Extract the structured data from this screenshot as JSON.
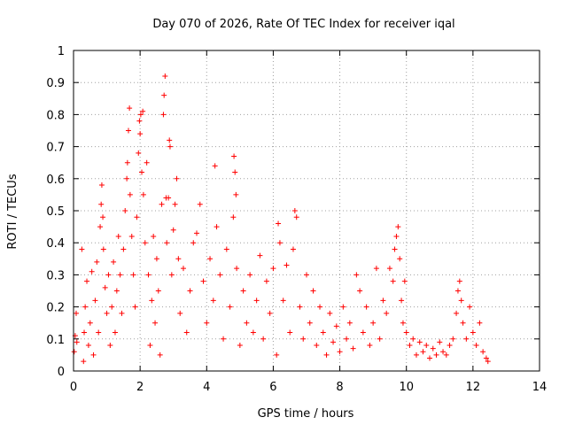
{
  "chart_data": {
    "type": "scatter",
    "title": "Day 070 of 2026, Rate Of TEC Index for receiver iqal",
    "xlabel": "GPS time / hours",
    "ylabel": "ROTI / TECUs",
    "xlim": [
      0,
      14
    ],
    "ylim": [
      0,
      1
    ],
    "xticks": [
      0,
      2,
      4,
      6,
      8,
      10,
      12,
      14
    ],
    "xtick_labels": [
      "0",
      "2",
      "4",
      "6",
      "8",
      "10",
      "12",
      "14"
    ],
    "yticks": [
      0,
      0.1,
      0.2,
      0.3,
      0.4,
      0.5,
      0.6,
      0.7,
      0.8,
      0.9,
      1
    ],
    "ytick_labels": [
      "0",
      "0.1",
      "0.2",
      "0.3",
      "0.4",
      "0.5",
      "0.6",
      "0.7",
      "0.8",
      "0.9",
      "1"
    ],
    "grid": true,
    "marker": "plus",
    "color": "#ff0000",
    "series": [
      {
        "name": "ROTI",
        "points": [
          [
            0.02,
            0.06
          ],
          [
            0.05,
            0.11
          ],
          [
            0.08,
            0.18
          ],
          [
            0.1,
            0.09
          ],
          [
            0.25,
            0.38
          ],
          [
            0.3,
            0.03
          ],
          [
            0.32,
            0.12
          ],
          [
            0.35,
            0.2
          ],
          [
            0.4,
            0.28
          ],
          [
            0.45,
            0.08
          ],
          [
            0.5,
            0.15
          ],
          [
            0.55,
            0.31
          ],
          [
            0.6,
            0.05
          ],
          [
            0.65,
            0.22
          ],
          [
            0.7,
            0.34
          ],
          [
            0.75,
            0.12
          ],
          [
            0.8,
            0.45
          ],
          [
            0.83,
            0.52
          ],
          [
            0.85,
            0.58
          ],
          [
            0.88,
            0.48
          ],
          [
            0.9,
            0.38
          ],
          [
            0.95,
            0.26
          ],
          [
            1.0,
            0.18
          ],
          [
            1.05,
            0.3
          ],
          [
            1.1,
            0.08
          ],
          [
            1.15,
            0.2
          ],
          [
            1.2,
            0.34
          ],
          [
            1.25,
            0.12
          ],
          [
            1.3,
            0.25
          ],
          [
            1.35,
            0.42
          ],
          [
            1.4,
            0.3
          ],
          [
            1.45,
            0.18
          ],
          [
            1.5,
            0.38
          ],
          [
            1.55,
            0.5
          ],
          [
            1.6,
            0.6
          ],
          [
            1.62,
            0.65
          ],
          [
            1.65,
            0.75
          ],
          [
            1.68,
            0.82
          ],
          [
            1.7,
            0.55
          ],
          [
            1.75,
            0.42
          ],
          [
            1.8,
            0.3
          ],
          [
            1.85,
            0.2
          ],
          [
            1.9,
            0.48
          ],
          [
            1.95,
            0.68
          ],
          [
            1.98,
            0.78
          ],
          [
            2.0,
            0.74
          ],
          [
            2.02,
            0.8
          ],
          [
            2.05,
            0.62
          ],
          [
            2.08,
            0.81
          ],
          [
            2.1,
            0.55
          ],
          [
            2.15,
            0.4
          ],
          [
            2.2,
            0.65
          ],
          [
            2.25,
            0.3
          ],
          [
            2.3,
            0.08
          ],
          [
            2.35,
            0.22
          ],
          [
            2.4,
            0.42
          ],
          [
            2.45,
            0.15
          ],
          [
            2.5,
            0.35
          ],
          [
            2.55,
            0.25
          ],
          [
            2.6,
            0.05
          ],
          [
            2.65,
            0.52
          ],
          [
            2.7,
            0.8
          ],
          [
            2.72,
            0.86
          ],
          [
            2.75,
            0.92
          ],
          [
            2.78,
            0.54
          ],
          [
            2.8,
            0.4
          ],
          [
            2.85,
            0.54
          ],
          [
            2.88,
            0.72
          ],
          [
            2.9,
            0.7
          ],
          [
            2.95,
            0.3
          ],
          [
            3.0,
            0.44
          ],
          [
            3.05,
            0.52
          ],
          [
            3.1,
            0.6
          ],
          [
            3.15,
            0.35
          ],
          [
            3.2,
            0.18
          ],
          [
            3.3,
            0.32
          ],
          [
            3.4,
            0.12
          ],
          [
            3.5,
            0.25
          ],
          [
            3.6,
            0.4
          ],
          [
            3.7,
            0.43
          ],
          [
            3.8,
            0.52
          ],
          [
            3.9,
            0.28
          ],
          [
            4.0,
            0.15
          ],
          [
            4.1,
            0.35
          ],
          [
            4.2,
            0.22
          ],
          [
            4.25,
            0.64
          ],
          [
            4.3,
            0.45
          ],
          [
            4.4,
            0.3
          ],
          [
            4.5,
            0.1
          ],
          [
            4.6,
            0.38
          ],
          [
            4.7,
            0.2
          ],
          [
            4.8,
            0.48
          ],
          [
            4.82,
            0.67
          ],
          [
            4.85,
            0.62
          ],
          [
            4.88,
            0.55
          ],
          [
            4.9,
            0.32
          ],
          [
            5.0,
            0.08
          ],
          [
            5.1,
            0.25
          ],
          [
            5.2,
            0.15
          ],
          [
            5.3,
            0.3
          ],
          [
            5.4,
            0.12
          ],
          [
            5.5,
            0.22
          ],
          [
            5.6,
            0.36
          ],
          [
            5.7,
            0.1
          ],
          [
            5.8,
            0.28
          ],
          [
            5.9,
            0.18
          ],
          [
            6.0,
            0.32
          ],
          [
            6.1,
            0.05
          ],
          [
            6.15,
            0.46
          ],
          [
            6.2,
            0.4
          ],
          [
            6.3,
            0.22
          ],
          [
            6.4,
            0.33
          ],
          [
            6.5,
            0.12
          ],
          [
            6.6,
            0.38
          ],
          [
            6.65,
            0.5
          ],
          [
            6.7,
            0.48
          ],
          [
            6.8,
            0.2
          ],
          [
            6.9,
            0.1
          ],
          [
            7.0,
            0.3
          ],
          [
            7.1,
            0.15
          ],
          [
            7.2,
            0.25
          ],
          [
            7.3,
            0.08
          ],
          [
            7.4,
            0.2
          ],
          [
            7.5,
            0.12
          ],
          [
            7.6,
            0.05
          ],
          [
            7.7,
            0.18
          ],
          [
            7.8,
            0.09
          ],
          [
            7.9,
            0.14
          ],
          [
            8.0,
            0.06
          ],
          [
            8.1,
            0.2
          ],
          [
            8.2,
            0.1
          ],
          [
            8.3,
            0.15
          ],
          [
            8.4,
            0.07
          ],
          [
            8.5,
            0.3
          ],
          [
            8.6,
            0.25
          ],
          [
            8.7,
            0.12
          ],
          [
            8.8,
            0.2
          ],
          [
            8.9,
            0.08
          ],
          [
            9.0,
            0.15
          ],
          [
            9.1,
            0.32
          ],
          [
            9.2,
            0.1
          ],
          [
            9.3,
            0.22
          ],
          [
            9.4,
            0.18
          ],
          [
            9.5,
            0.32
          ],
          [
            9.6,
            0.28
          ],
          [
            9.65,
            0.38
          ],
          [
            9.7,
            0.42
          ],
          [
            9.75,
            0.45
          ],
          [
            9.8,
            0.35
          ],
          [
            9.85,
            0.22
          ],
          [
            9.9,
            0.15
          ],
          [
            9.95,
            0.28
          ],
          [
            10.0,
            0.12
          ],
          [
            10.1,
            0.08
          ],
          [
            10.2,
            0.1
          ],
          [
            10.3,
            0.05
          ],
          [
            10.4,
            0.09
          ],
          [
            10.5,
            0.06
          ],
          [
            10.6,
            0.08
          ],
          [
            10.7,
            0.04
          ],
          [
            10.8,
            0.07
          ],
          [
            10.9,
            0.05
          ],
          [
            11.0,
            0.09
          ],
          [
            11.1,
            0.06
          ],
          [
            11.2,
            0.05
          ],
          [
            11.3,
            0.08
          ],
          [
            11.4,
            0.1
          ],
          [
            11.5,
            0.18
          ],
          [
            11.55,
            0.25
          ],
          [
            11.6,
            0.28
          ],
          [
            11.65,
            0.22
          ],
          [
            11.7,
            0.15
          ],
          [
            11.8,
            0.1
          ],
          [
            11.9,
            0.2
          ],
          [
            12.0,
            0.12
          ],
          [
            12.1,
            0.08
          ],
          [
            12.2,
            0.15
          ],
          [
            12.3,
            0.06
          ],
          [
            12.4,
            0.04
          ],
          [
            12.45,
            0.03
          ]
        ]
      }
    ]
  }
}
